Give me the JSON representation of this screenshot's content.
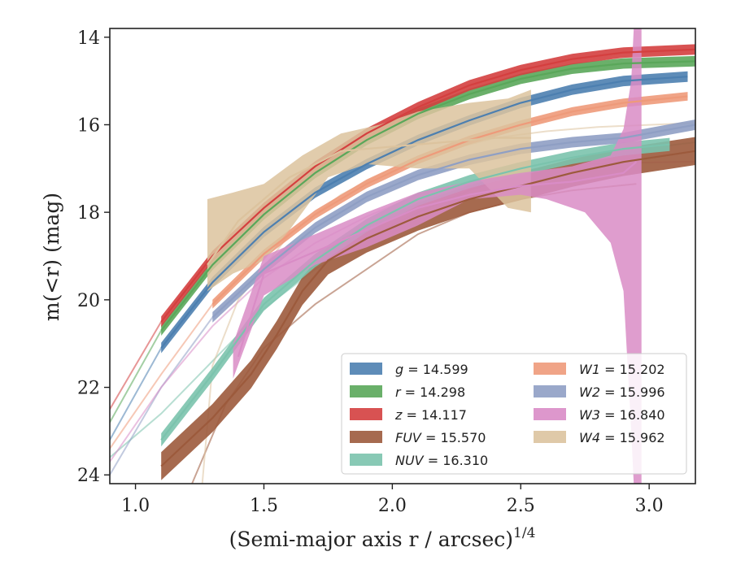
{
  "chart_data": {
    "type": "line",
    "xlabel": "(Semi-major axis r / arcsec)",
    "xlabel_exponent": "1/4",
    "ylabel": "m(<r) (mag)",
    "xlim": [
      0.9,
      3.18
    ],
    "ylim": [
      24.2,
      13.8
    ],
    "x_ticks": [
      "1.0",
      "1.5",
      "2.0",
      "2.5",
      "3.0"
    ],
    "y_ticks": [
      "14",
      "16",
      "18",
      "20",
      "22",
      "24"
    ],
    "inverted_y": true,
    "grid": false,
    "legend_position": "lower-right",
    "series": [
      {
        "name": "g = 14.599",
        "label_var": "g",
        "label_val": "14.599",
        "color": "#4c7fb0",
        "band": 0.12,
        "points": [
          [
            1.1,
            21.1
          ],
          [
            1.3,
            19.6
          ],
          [
            1.5,
            18.45
          ],
          [
            1.7,
            17.55
          ],
          [
            1.9,
            16.9
          ],
          [
            2.1,
            16.35
          ],
          [
            2.3,
            15.9
          ],
          [
            2.5,
            15.5
          ],
          [
            2.7,
            15.2
          ],
          [
            2.9,
            15.0
          ],
          [
            3.15,
            14.9
          ]
        ],
        "extrapolated": [
          [
            0.9,
            23.2
          ],
          [
            1.1,
            21.1
          ]
        ]
      },
      {
        "name": "r = 14.298",
        "label_var": "r",
        "label_val": "14.298",
        "color": "#5aa75a",
        "band": 0.12,
        "points": [
          [
            1.1,
            20.7
          ],
          [
            1.3,
            19.2
          ],
          [
            1.5,
            18.05
          ],
          [
            1.7,
            17.1
          ],
          [
            1.9,
            16.35
          ],
          [
            2.1,
            15.75
          ],
          [
            2.3,
            15.3
          ],
          [
            2.5,
            14.95
          ],
          [
            2.7,
            14.72
          ],
          [
            2.9,
            14.6
          ],
          [
            3.18,
            14.55
          ]
        ],
        "extrapolated": [
          [
            0.9,
            22.8
          ],
          [
            1.1,
            20.7
          ]
        ]
      },
      {
        "name": "z = 14.117",
        "label_var": "z",
        "label_val": "14.117",
        "color": "#d43f3f",
        "band": 0.12,
        "points": [
          [
            1.1,
            20.5
          ],
          [
            1.3,
            19.0
          ],
          [
            1.5,
            17.9
          ],
          [
            1.7,
            16.95
          ],
          [
            1.9,
            16.2
          ],
          [
            2.1,
            15.6
          ],
          [
            2.3,
            15.1
          ],
          [
            2.5,
            14.75
          ],
          [
            2.7,
            14.5
          ],
          [
            2.9,
            14.35
          ],
          [
            3.18,
            14.28
          ]
        ],
        "extrapolated": [
          [
            0.9,
            22.5
          ],
          [
            1.1,
            20.5
          ]
        ]
      },
      {
        "name": "FUV = 15.570",
        "label_var": "FUV",
        "label_val": "15.570",
        "color": "#9c5a3c",
        "band": 0.32,
        "points": [
          [
            1.1,
            23.8
          ],
          [
            1.3,
            22.7
          ],
          [
            1.45,
            21.7
          ],
          [
            1.55,
            20.8
          ],
          [
            1.65,
            19.8
          ],
          [
            1.75,
            19.1
          ],
          [
            1.9,
            18.6
          ],
          [
            2.1,
            18.1
          ],
          [
            2.3,
            17.7
          ],
          [
            2.5,
            17.4
          ],
          [
            2.7,
            17.1
          ],
          [
            2.9,
            16.85
          ],
          [
            3.18,
            16.6
          ]
        ],
        "extrapolated": [
          [
            1.22,
            24.2
          ],
          [
            1.35,
            22.4
          ],
          [
            1.5,
            21.1
          ],
          [
            1.7,
            20.1
          ],
          [
            1.9,
            19.3
          ],
          [
            2.1,
            18.5
          ],
          [
            2.3,
            18.0
          ],
          [
            2.5,
            17.7
          ],
          [
            2.7,
            17.5
          ],
          [
            2.95,
            17.35
          ]
        ]
      },
      {
        "name": "NUV = 16.310",
        "label_var": "NUV",
        "label_val": "16.310",
        "color": "#7bc3ad",
        "band": 0.15,
        "points": [
          [
            1.1,
            23.2
          ],
          [
            1.3,
            21.7
          ],
          [
            1.5,
            20.1
          ],
          [
            1.7,
            19.1
          ],
          [
            1.9,
            18.3
          ],
          [
            2.1,
            17.7
          ],
          [
            2.3,
            17.3
          ],
          [
            2.5,
            17.0
          ],
          [
            2.7,
            16.75
          ],
          [
            2.9,
            16.55
          ],
          [
            3.08,
            16.45
          ]
        ],
        "extrapolated": [
          [
            0.9,
            23.6
          ],
          [
            1.1,
            22.6
          ],
          [
            1.3,
            21.4
          ],
          [
            1.5,
            20.2
          ],
          [
            1.7,
            19.3
          ],
          [
            1.9,
            18.6
          ],
          [
            2.1,
            18.0
          ],
          [
            2.3,
            17.5
          ],
          [
            2.5,
            17.1
          ],
          [
            2.7,
            16.8
          ],
          [
            2.9,
            16.6
          ],
          [
            3.18,
            16.4
          ]
        ]
      },
      {
        "name": "W1 = 15.202",
        "label_var": "W1",
        "label_val": "15.202",
        "color": "#ee9a7a",
        "band": 0.1,
        "points": [
          [
            1.3,
            20.1
          ],
          [
            1.5,
            18.95
          ],
          [
            1.7,
            18.05
          ],
          [
            1.9,
            17.35
          ],
          [
            2.1,
            16.8
          ],
          [
            2.3,
            16.35
          ],
          [
            2.5,
            16.0
          ],
          [
            2.7,
            15.7
          ],
          [
            2.9,
            15.5
          ],
          [
            3.15,
            15.35
          ]
        ],
        "extrapolated": [
          [
            0.9,
            23.4
          ],
          [
            1.1,
            21.7
          ],
          [
            1.3,
            20.1
          ]
        ]
      },
      {
        "name": "W2 = 15.996",
        "label_var": "W2",
        "label_val": "15.996",
        "color": "#8f9fc4",
        "band": 0.12,
        "points": [
          [
            1.3,
            20.4
          ],
          [
            1.5,
            19.3
          ],
          [
            1.7,
            18.35
          ],
          [
            1.9,
            17.65
          ],
          [
            2.1,
            17.15
          ],
          [
            2.3,
            16.8
          ],
          [
            2.5,
            16.55
          ],
          [
            2.7,
            16.4
          ],
          [
            2.9,
            16.3
          ],
          [
            3.18,
            16.0
          ]
        ],
        "extrapolated": [
          [
            0.9,
            24.0
          ],
          [
            1.1,
            22.0
          ],
          [
            1.3,
            20.4
          ]
        ]
      },
      {
        "name": "W3 = 16.840",
        "label_var": "W3",
        "label_val": "16.840",
        "color": "#d98cc6",
        "band": 0.0,
        "points": [
          [
            1.4,
            21.3
          ],
          [
            1.5,
            19.4
          ],
          [
            1.7,
            18.9
          ],
          [
            1.9,
            18.4
          ],
          [
            2.1,
            17.9
          ],
          [
            2.3,
            17.6
          ],
          [
            2.5,
            17.4
          ],
          [
            2.7,
            17.3
          ],
          [
            2.9,
            17.1
          ],
          [
            2.95,
            16.85
          ]
        ],
        "extrapolated": [
          [
            0.9,
            23.7
          ],
          [
            1.1,
            22.0
          ],
          [
            1.3,
            20.6
          ],
          [
            1.5,
            19.5
          ],
          [
            1.7,
            18.7
          ],
          [
            1.9,
            18.1
          ],
          [
            2.1,
            17.6
          ],
          [
            2.3,
            17.3
          ],
          [
            2.5,
            17.05
          ],
          [
            2.7,
            16.9
          ],
          [
            3.18,
            16.84
          ]
        ]
      },
      {
        "name": "W4 = 15.962",
        "label_var": "W4",
        "label_val": "15.962",
        "color": "#dcc39e",
        "band": 0.0,
        "points": [
          [
            1.28,
            19.2
          ],
          [
            1.4,
            18.2
          ],
          [
            1.6,
            17.2
          ],
          [
            1.8,
            16.6
          ],
          [
            2.0,
            16.5
          ],
          [
            2.2,
            16.4
          ],
          [
            2.4,
            16.3
          ],
          [
            2.54,
            16.3
          ]
        ],
        "extrapolated": [
          [
            1.26,
            24.2
          ],
          [
            1.3,
            21.5
          ],
          [
            1.4,
            20.0
          ],
          [
            1.6,
            18.5
          ],
          [
            1.8,
            17.6
          ],
          [
            2.0,
            17.0
          ],
          [
            2.2,
            16.6
          ],
          [
            2.4,
            16.3
          ],
          [
            2.6,
            16.15
          ],
          [
            2.8,
            16.05
          ],
          [
            3.18,
            15.96
          ]
        ]
      }
    ]
  }
}
